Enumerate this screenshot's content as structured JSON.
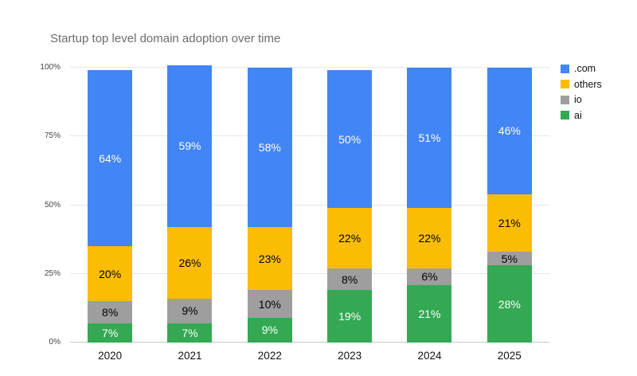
{
  "chart_data": {
    "type": "bar",
    "stacked": true,
    "title": "Startup top level domain adoption over time",
    "categories": [
      "2020",
      "2021",
      "2022",
      "2023",
      "2024",
      "2025"
    ],
    "series": [
      {
        "name": ".com",
        "color": "#4285F4",
        "label_color": "#ffffff",
        "values": [
          64,
          59,
          58,
          50,
          51,
          46
        ]
      },
      {
        "name": "others",
        "color": "#FBBC04",
        "label_color": "#000000",
        "values": [
          20,
          26,
          23,
          22,
          22,
          21
        ]
      },
      {
        "name": "io",
        "color": "#9E9E9E",
        "label_color": "#000000",
        "values": [
          8,
          9,
          10,
          8,
          6,
          5
        ]
      },
      {
        "name": "ai",
        "color": "#34A853",
        "label_color": "#ffffff",
        "values": [
          7,
          7,
          9,
          19,
          21,
          28
        ]
      }
    ],
    "stack_order_bottom_to_top": [
      "ai",
      "io",
      "others",
      ".com"
    ],
    "value_suffix": "%",
    "ylim": [
      0,
      100
    ],
    "yticks": [
      {
        "value": 0,
        "label": "0%"
      },
      {
        "value": 25,
        "label": "25%"
      },
      {
        "value": 50,
        "label": "50%"
      },
      {
        "value": 75,
        "label": "75%"
      },
      {
        "value": 100,
        "label": "100%"
      }
    ],
    "grid": true,
    "legend_position": "right"
  }
}
